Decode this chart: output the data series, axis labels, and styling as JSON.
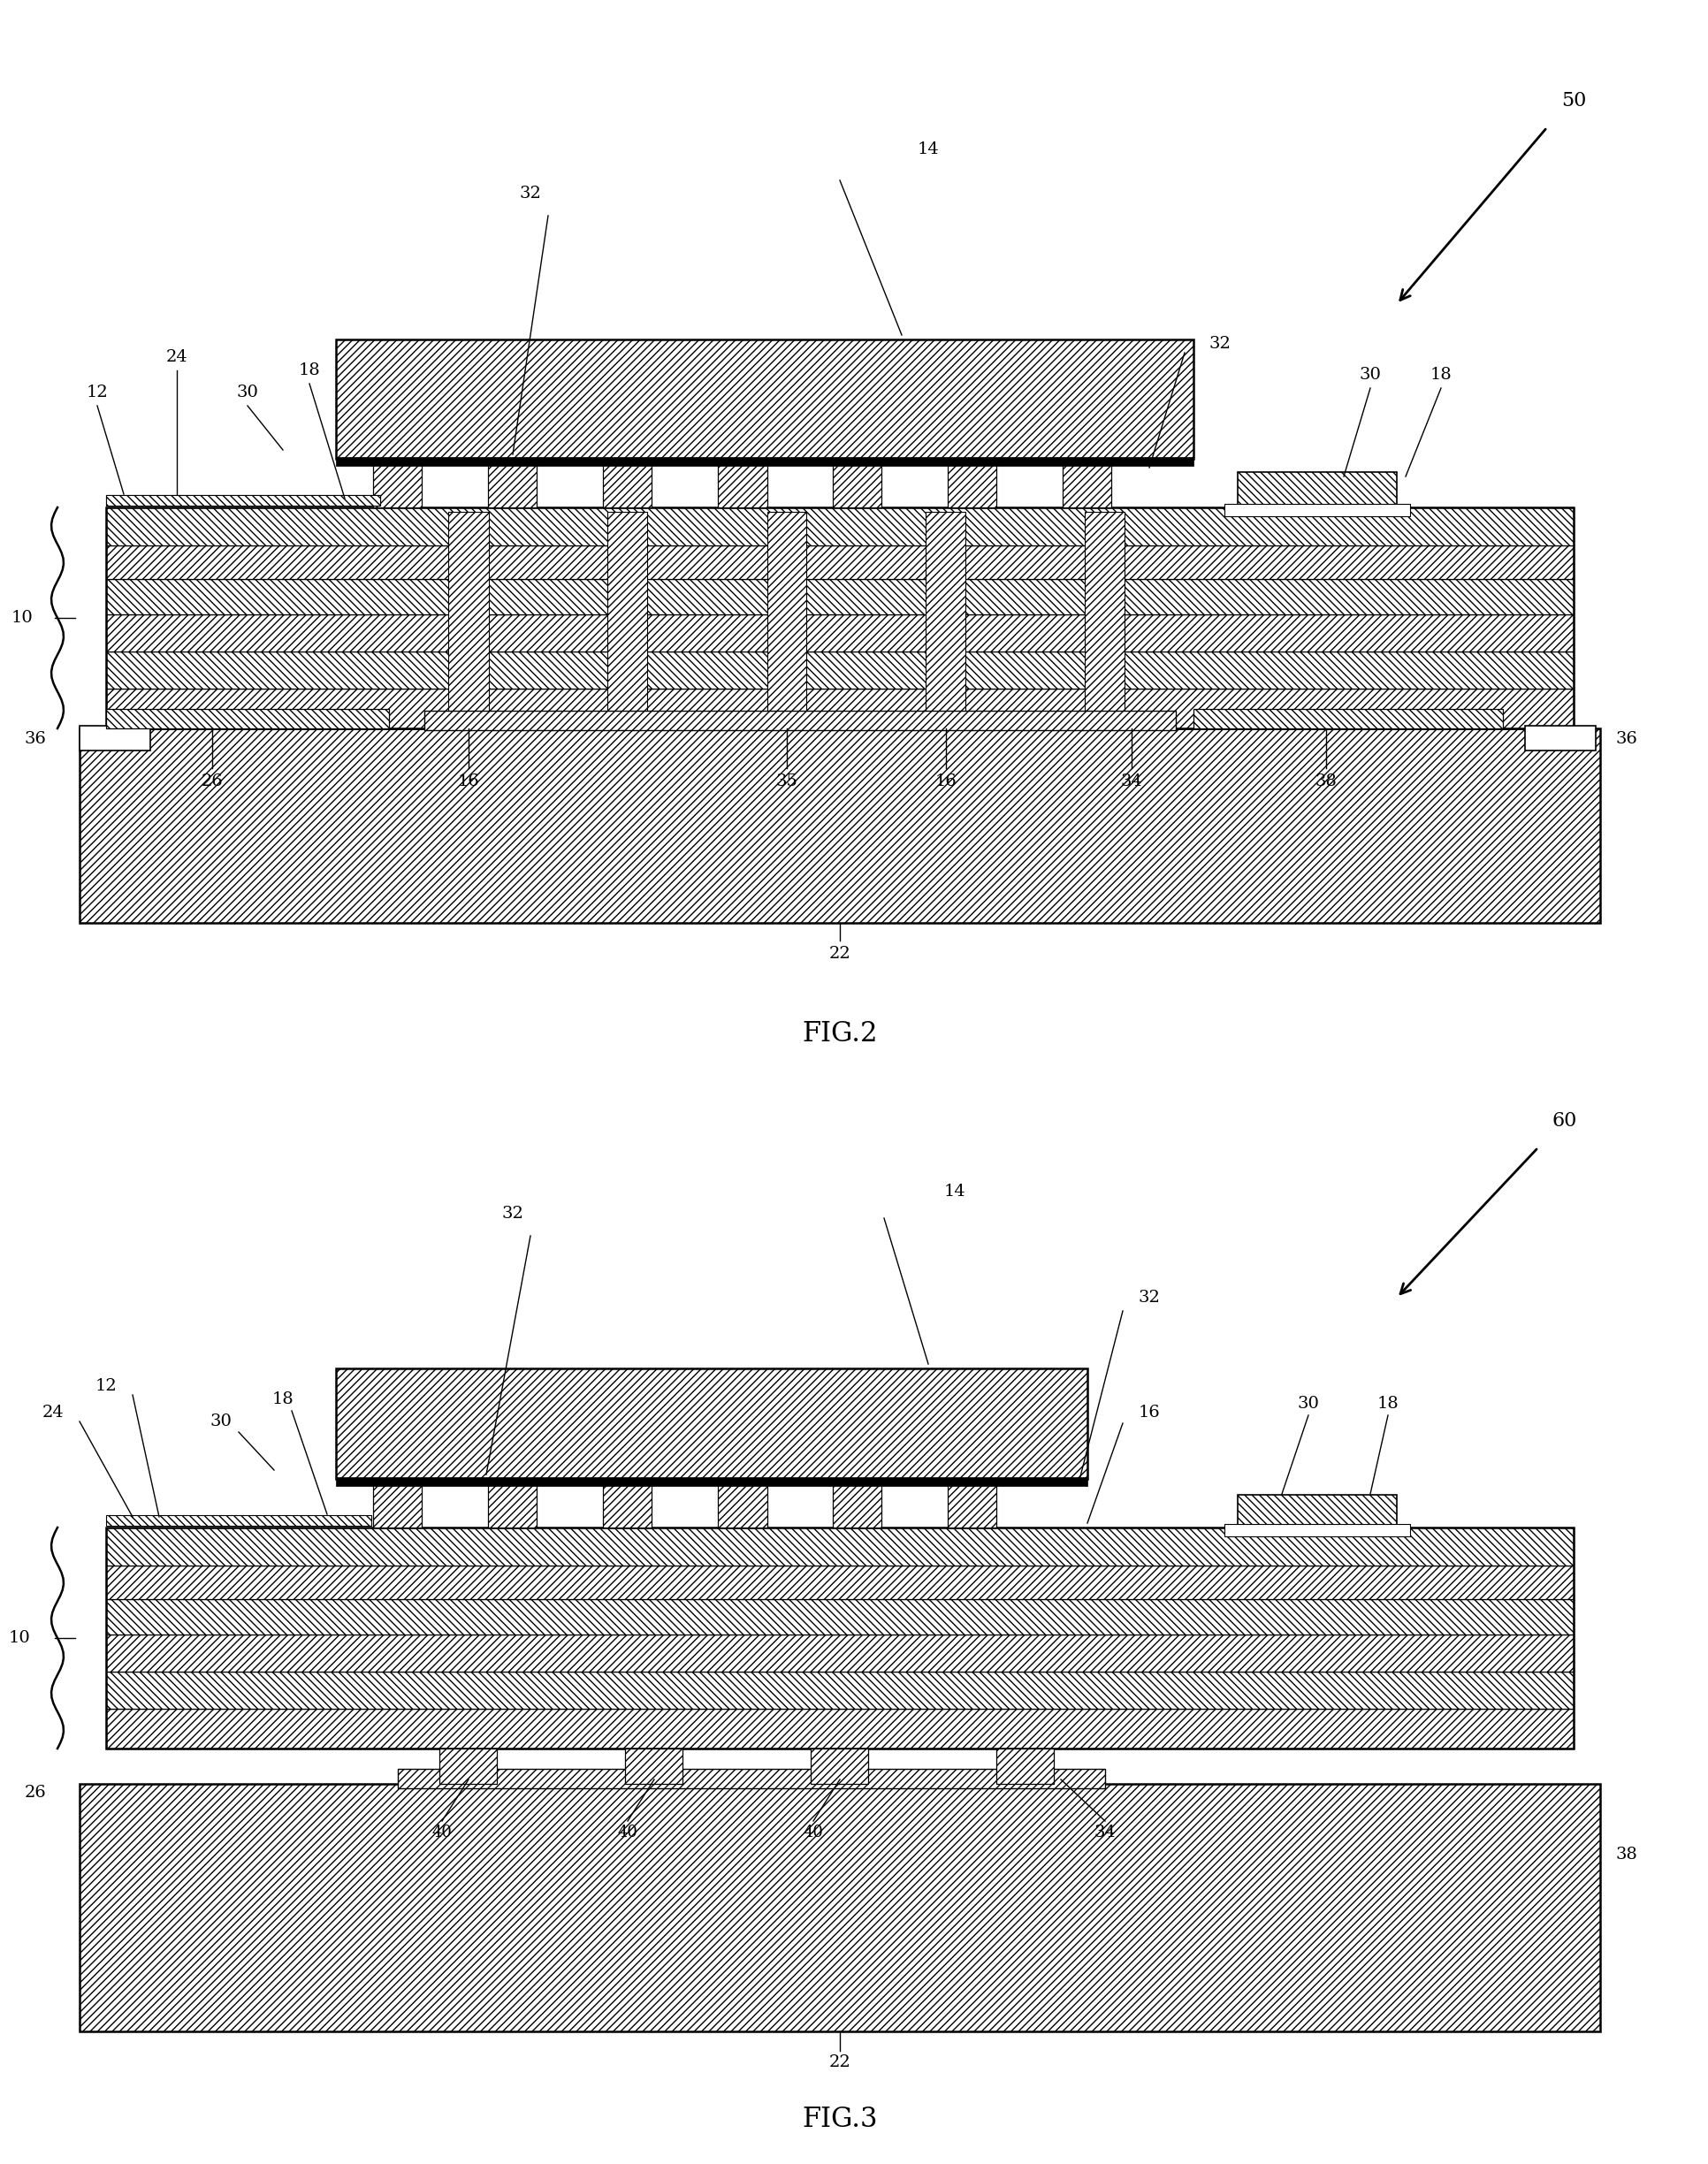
{
  "bg_color": "#ffffff",
  "fig2_title": "FIG.2",
  "fig3_title": "FIG.3",
  "fig2_num": "50",
  "fig3_num": "60",
  "hatch_diag": "////",
  "hatch_back": "\\\\\\\\",
  "lw_main": 1.8,
  "lw_med": 1.2,
  "lw_thin": 0.9,
  "label_fontsize": 14,
  "caption_fontsize": 22
}
